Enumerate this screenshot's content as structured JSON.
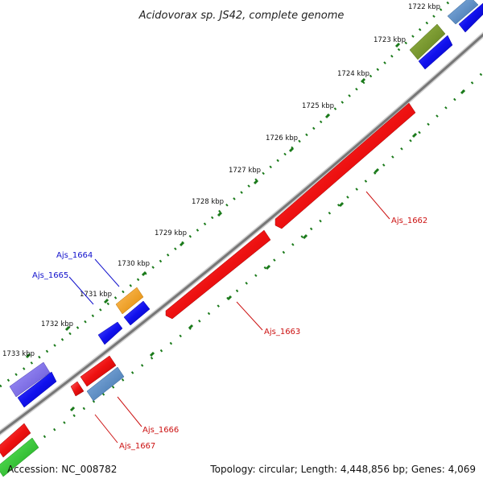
{
  "title": "Acidovorax sp. JS42, complete genome",
  "ticks": [
    "1722 kbp",
    "1723 kbp",
    "1724 kbp",
    "1725 kbp",
    "1726 kbp",
    "1727 kbp",
    "1728 kbp",
    "1729 kbp",
    "1730 kbp",
    "1731 kbp",
    "1732 kbp",
    "1733 kbp"
  ],
  "gene_labels": {
    "ajs_1662": "Ajs_1662",
    "ajs_1663": "Ajs_1663",
    "ajs_1664": "Ajs_1664",
    "ajs_1665": "Ajs_1665",
    "ajs_1666": "Ajs_1666",
    "ajs_1667": "Ajs_1667"
  },
  "footer": {
    "accession": "Accession: NC_008782",
    "stats": "Topology: circular; Length: 4,448,856 bp; Genes: 4,069"
  },
  "colors": {
    "backbone": "#888888",
    "red_gene": "#ee1111",
    "blue_gene": "#1111ee",
    "orange_gene": "#ff9900",
    "olive_gene": "#6b8e23",
    "steelblue_gene": "#4f86c6",
    "purple_gene": "#7b68ee",
    "green_gene": "#22cc22",
    "tick_green": "#1a7a1a",
    "label_blue": "#1111cc",
    "label_red": "#cc1111"
  }
}
